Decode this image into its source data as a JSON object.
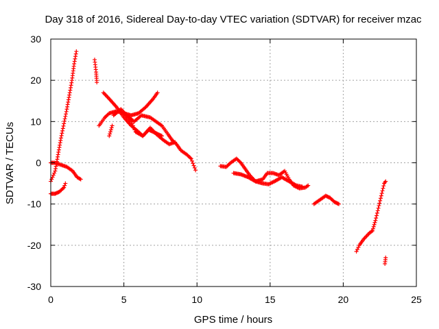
{
  "chart_data": {
    "type": "scatter",
    "title": "Day 318 of 2016, Sidereal Day-to-day VTEC variation (SDTVAR) for receiver mzac",
    "xlabel": "GPS time / hours",
    "ylabel": "SDTVAR / TECUs",
    "xlim": [
      0,
      25
    ],
    "ylim": [
      -30,
      30
    ],
    "xticks": [
      0,
      5,
      10,
      15,
      20,
      25
    ],
    "yticks": [
      -30,
      -20,
      -10,
      0,
      10,
      20,
      30
    ],
    "grid": true,
    "marker": "plus",
    "color": "#ff0000",
    "series": [
      {
        "name": "SDTVAR",
        "tracks": [
          [
            [
              0.0,
              -4.5
            ],
            [
              0.3,
              -2.0
            ],
            [
              0.5,
              2.0
            ],
            [
              0.7,
              6.0
            ],
            [
              0.9,
              9.5
            ],
            [
              1.1,
              13.0
            ],
            [
              1.3,
              17.0
            ],
            [
              1.45,
              20.0
            ],
            [
              1.6,
              24.0
            ],
            [
              1.75,
              27.0
            ]
          ],
          [
            [
              0.0,
              0.0
            ],
            [
              0.3,
              0.0
            ],
            [
              0.7,
              -0.5
            ],
            [
              1.1,
              -1.0
            ],
            [
              1.5,
              -2.0
            ],
            [
              1.8,
              -3.5
            ],
            [
              2.05,
              -4.0
            ]
          ],
          [
            [
              0.0,
              -7.5
            ],
            [
              0.3,
              -7.5
            ],
            [
              0.6,
              -7.0
            ],
            [
              0.9,
              -6.0
            ],
            [
              1.0,
              -5.0
            ]
          ],
          [
            [
              3.0,
              25.0
            ],
            [
              3.1,
              22.0
            ],
            [
              3.15,
              19.5
            ]
          ],
          [
            [
              3.3,
              9.0
            ],
            [
              3.7,
              11.0
            ],
            [
              4.0,
              12.0
            ],
            [
              4.5,
              12.5
            ],
            [
              5.0,
              12.0
            ],
            [
              5.5,
              11.5
            ],
            [
              6.0,
              12.0
            ],
            [
              6.5,
              13.5
            ],
            [
              7.0,
              15.5
            ],
            [
              7.3,
              17.0
            ]
          ],
          [
            [
              3.6,
              17.0
            ],
            [
              4.0,
              15.5
            ],
            [
              4.5,
              13.5
            ],
            [
              5.0,
              11.0
            ],
            [
              5.5,
              9.0
            ],
            [
              6.0,
              7.5
            ],
            [
              6.3,
              6.5
            ],
            [
              6.7,
              8.0
            ],
            [
              7.0,
              7.5
            ],
            [
              7.3,
              7.0
            ],
            [
              7.6,
              6.5
            ]
          ],
          [
            [
              4.0,
              6.5
            ],
            [
              4.2,
              9.0
            ]
          ],
          [
            [
              4.3,
              11.5
            ],
            [
              4.8,
              13.0
            ],
            [
              5.2,
              11.5
            ],
            [
              5.7,
              10.0
            ],
            [
              6.2,
              11.5
            ],
            [
              6.8,
              11.0
            ],
            [
              7.2,
              10.0
            ],
            [
              7.6,
              9.0
            ],
            [
              8.0,
              7.0
            ],
            [
              8.3,
              5.5
            ],
            [
              8.6,
              4.5
            ],
            [
              8.9,
              3.0
            ],
            [
              9.3,
              2.0
            ],
            [
              9.6,
              1.0
            ],
            [
              9.9,
              -1.8
            ]
          ],
          [
            [
              5.0,
              12.0
            ],
            [
              5.5,
              10.0
            ],
            [
              5.8,
              7.5
            ],
            [
              6.3,
              6.5
            ],
            [
              6.8,
              8.5
            ],
            [
              7.2,
              7.0
            ],
            [
              7.7,
              5.5
            ],
            [
              8.1,
              4.5
            ],
            [
              8.5,
              5.0
            ]
          ],
          [
            [
              11.6,
              -0.8
            ],
            [
              12.0,
              -1.0
            ],
            [
              12.3,
              0.0
            ],
            [
              12.7,
              1.0
            ],
            [
              13.0,
              0.0
            ],
            [
              13.3,
              -1.5
            ],
            [
              13.6,
              -3.0
            ],
            [
              14.0,
              -4.5
            ],
            [
              14.5,
              -4.0
            ],
            [
              14.8,
              -2.5
            ],
            [
              15.2,
              -2.5
            ],
            [
              15.6,
              -3.0
            ],
            [
              16.0,
              -2.0
            ],
            [
              16.3,
              -4.0
            ],
            [
              16.6,
              -5.5
            ],
            [
              17.0,
              -6.2
            ],
            [
              17.4,
              -6.0
            ],
            [
              17.6,
              -5.5
            ]
          ],
          [
            [
              12.5,
              -2.5
            ],
            [
              13.0,
              -2.8
            ],
            [
              13.5,
              -3.5
            ],
            [
              14.0,
              -4.5
            ],
            [
              14.5,
              -5.0
            ],
            [
              14.9,
              -5.2
            ],
            [
              15.3,
              -4.5
            ],
            [
              15.8,
              -3.5
            ],
            [
              16.3,
              -4.5
            ],
            [
              16.8,
              -5.5
            ],
            [
              17.2,
              -5.8
            ]
          ],
          [
            [
              18.0,
              -10.0
            ],
            [
              18.4,
              -9.0
            ],
            [
              18.8,
              -8.0
            ],
            [
              19.1,
              -8.5
            ],
            [
              19.4,
              -9.5
            ],
            [
              19.7,
              -10.0
            ]
          ],
          [
            [
              20.9,
              -21.5
            ],
            [
              21.1,
              -20.0
            ],
            [
              21.4,
              -18.5
            ],
            [
              21.8,
              -17.0
            ],
            [
              22.0,
              -16.5
            ],
            [
              22.2,
              -14.0
            ],
            [
              22.4,
              -11.0
            ],
            [
              22.6,
              -8.0
            ],
            [
              22.8,
              -5.0
            ],
            [
              22.9,
              -4.5
            ]
          ],
          [
            [
              22.85,
              -24.5
            ],
            [
              22.9,
              -23.0
            ]
          ]
        ]
      }
    ]
  }
}
